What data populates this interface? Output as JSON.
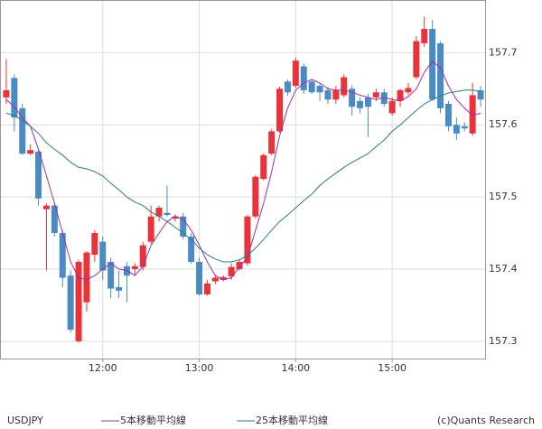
{
  "chart_data": {
    "type": "candlestick",
    "symbol": "USDJPY",
    "credit": "(c)Quants Research",
    "categories": [
      null,
      null,
      null,
      null,
      null,
      null,
      null,
      null,
      null,
      null,
      null,
      null,
      "12:00",
      null,
      null,
      null,
      null,
      null,
      null,
      null,
      null,
      null,
      null,
      null,
      "13:00",
      null,
      null,
      null,
      null,
      null,
      null,
      null,
      null,
      null,
      null,
      null,
      "14:00",
      null,
      null,
      null,
      null,
      null,
      null,
      null,
      null,
      null,
      null,
      null,
      "15:00",
      null,
      null,
      null,
      null,
      null,
      null,
      null,
      null,
      null,
      null,
      null
    ],
    "open": [
      157.638,
      157.665,
      157.623,
      157.56,
      157.563,
      157.483,
      157.488,
      157.45,
      157.391,
      157.3,
      157.354,
      157.42,
      157.438,
      157.41,
      157.375,
      157.404,
      157.4,
      157.403,
      157.438,
      157.473,
      157.478,
      157.47,
      157.473,
      157.445,
      157.41,
      157.365,
      157.383,
      157.385,
      157.39,
      157.4,
      157.408,
      157.473,
      157.525,
      157.56,
      157.591,
      157.66,
      157.654,
      157.681,
      157.66,
      157.654,
      157.648,
      157.635,
      157.641,
      157.65,
      157.633,
      157.638,
      157.638,
      157.645,
      157.616,
      157.633,
      157.645,
      157.666,
      157.713,
      157.733,
      157.713,
      157.629,
      157.6,
      157.598,
      157.588,
      157.648
    ],
    "high": [
      157.691,
      157.67,
      157.629,
      157.573,
      157.566,
      157.491,
      157.491,
      157.454,
      157.398,
      157.413,
      157.425,
      157.454,
      157.445,
      157.416,
      157.398,
      157.41,
      157.408,
      157.438,
      157.488,
      157.488,
      157.516,
      157.476,
      157.478,
      157.45,
      157.416,
      157.385,
      157.391,
      157.391,
      157.408,
      157.413,
      157.475,
      157.53,
      157.56,
      157.594,
      157.653,
      157.663,
      157.693,
      157.685,
      157.663,
      157.658,
      157.653,
      157.654,
      157.67,
      157.655,
      157.638,
      157.643,
      157.65,
      157.65,
      157.638,
      157.65,
      157.658,
      157.723,
      157.75,
      157.745,
      157.716,
      157.633,
      157.61,
      157.604,
      157.658,
      157.654
    ],
    "low": [
      157.629,
      157.591,
      157.558,
      157.558,
      157.488,
      157.398,
      157.445,
      157.375,
      157.312,
      157.298,
      157.341,
      157.41,
      157.385,
      157.36,
      157.36,
      157.354,
      157.391,
      157.398,
      157.435,
      157.466,
      157.473,
      157.466,
      157.441,
      157.408,
      157.363,
      157.363,
      157.379,
      157.383,
      157.385,
      157.398,
      157.405,
      157.47,
      157.523,
      157.558,
      157.589,
      157.64,
      157.651,
      157.643,
      157.643,
      157.633,
      157.629,
      157.629,
      157.638,
      157.613,
      157.616,
      157.583,
      157.633,
      157.625,
      157.613,
      157.625,
      157.641,
      157.663,
      157.708,
      157.633,
      157.616,
      157.591,
      157.579,
      157.591,
      157.585,
      157.625
    ],
    "close": [
      157.648,
      157.61,
      157.56,
      157.565,
      157.498,
      157.488,
      157.45,
      157.388,
      157.316,
      157.41,
      157.423,
      157.45,
      157.398,
      157.373,
      157.37,
      157.391,
      157.404,
      157.433,
      157.473,
      157.485,
      157.475,
      157.473,
      157.445,
      157.41,
      157.365,
      157.38,
      157.388,
      157.389,
      157.403,
      157.41,
      157.473,
      157.528,
      157.558,
      157.591,
      157.65,
      157.645,
      157.689,
      157.648,
      157.645,
      157.645,
      157.635,
      157.648,
      157.666,
      157.625,
      157.623,
      157.625,
      157.645,
      157.629,
      157.633,
      157.648,
      157.651,
      157.716,
      157.733,
      157.635,
      157.623,
      157.598,
      157.588,
      157.595,
      157.641,
      157.635
    ],
    "up_color": "#e8333a",
    "down_color": "#4a8bc4",
    "series": [
      {
        "name": "5本移動平均線",
        "color": "#9b2fae",
        "values": [
          157.635,
          157.625,
          157.61,
          157.598,
          157.566,
          157.529,
          157.491,
          157.45,
          157.41,
          157.388,
          157.385,
          157.391,
          157.4,
          157.408,
          157.4,
          157.398,
          157.391,
          157.404,
          157.433,
          157.45,
          157.466,
          157.473,
          157.469,
          157.454,
          157.433,
          157.41,
          157.391,
          157.385,
          157.388,
          157.403,
          157.416,
          157.454,
          157.491,
          157.535,
          157.585,
          157.623,
          157.648,
          157.658,
          157.663,
          157.658,
          157.65,
          157.648,
          157.648,
          157.645,
          157.641,
          157.638,
          157.635,
          157.638,
          157.635,
          157.633,
          157.639,
          157.65,
          157.673,
          157.688,
          157.679,
          157.654,
          157.635,
          157.623,
          157.613,
          157.616
        ]
      },
      {
        "name": "25本移動平均線",
        "color": "#2e7d78",
        "values": [
          157.616,
          157.613,
          157.606,
          157.598,
          157.588,
          157.575,
          157.566,
          157.558,
          157.548,
          157.541,
          157.539,
          157.535,
          157.529,
          157.519,
          157.51,
          157.5,
          157.493,
          157.488,
          157.479,
          157.473,
          157.466,
          157.458,
          157.45,
          157.441,
          157.429,
          157.42,
          157.414,
          157.41,
          157.41,
          157.413,
          157.419,
          157.429,
          157.441,
          157.454,
          157.466,
          157.475,
          157.485,
          157.495,
          157.504,
          157.516,
          157.525,
          157.533,
          157.541,
          157.548,
          157.554,
          157.56,
          157.57,
          157.579,
          157.591,
          157.6,
          157.61,
          157.62,
          157.629,
          157.635,
          157.64,
          157.644,
          157.646,
          157.648,
          157.648,
          157.646
        ]
      }
    ],
    "ylim": [
      157.276,
      157.773
    ],
    "yticks": [
      157.3,
      157.4,
      157.5,
      157.6,
      157.7
    ],
    "grid": true
  }
}
